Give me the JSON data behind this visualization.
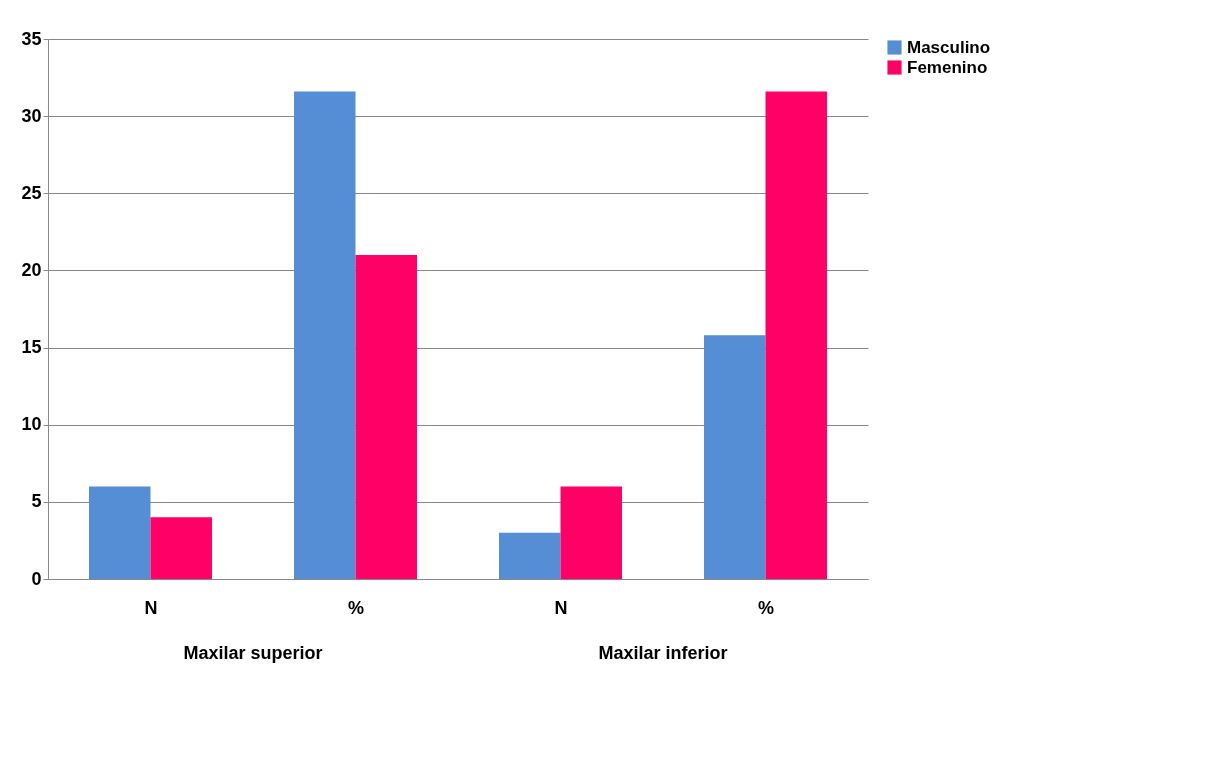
{
  "chart_data": {
    "type": "bar",
    "categories": [
      "N",
      "%",
      "N",
      "%"
    ],
    "series": [
      {
        "name": "Masculino",
        "color": "#558ed5",
        "values": [
          6,
          31.6,
          3,
          15.8
        ]
      },
      {
        "name": "Femenino",
        "color": "#ff0066",
        "values": [
          4,
          21,
          6,
          31.6
        ]
      }
    ],
    "annotations": [
      "Maxilar superior",
      "Maxilar inferior"
    ],
    "ylim": [
      0,
      35
    ],
    "yticks": [
      0,
      5,
      10,
      15,
      20,
      25,
      30,
      35
    ],
    "grid": "y",
    "legend": "right"
  }
}
